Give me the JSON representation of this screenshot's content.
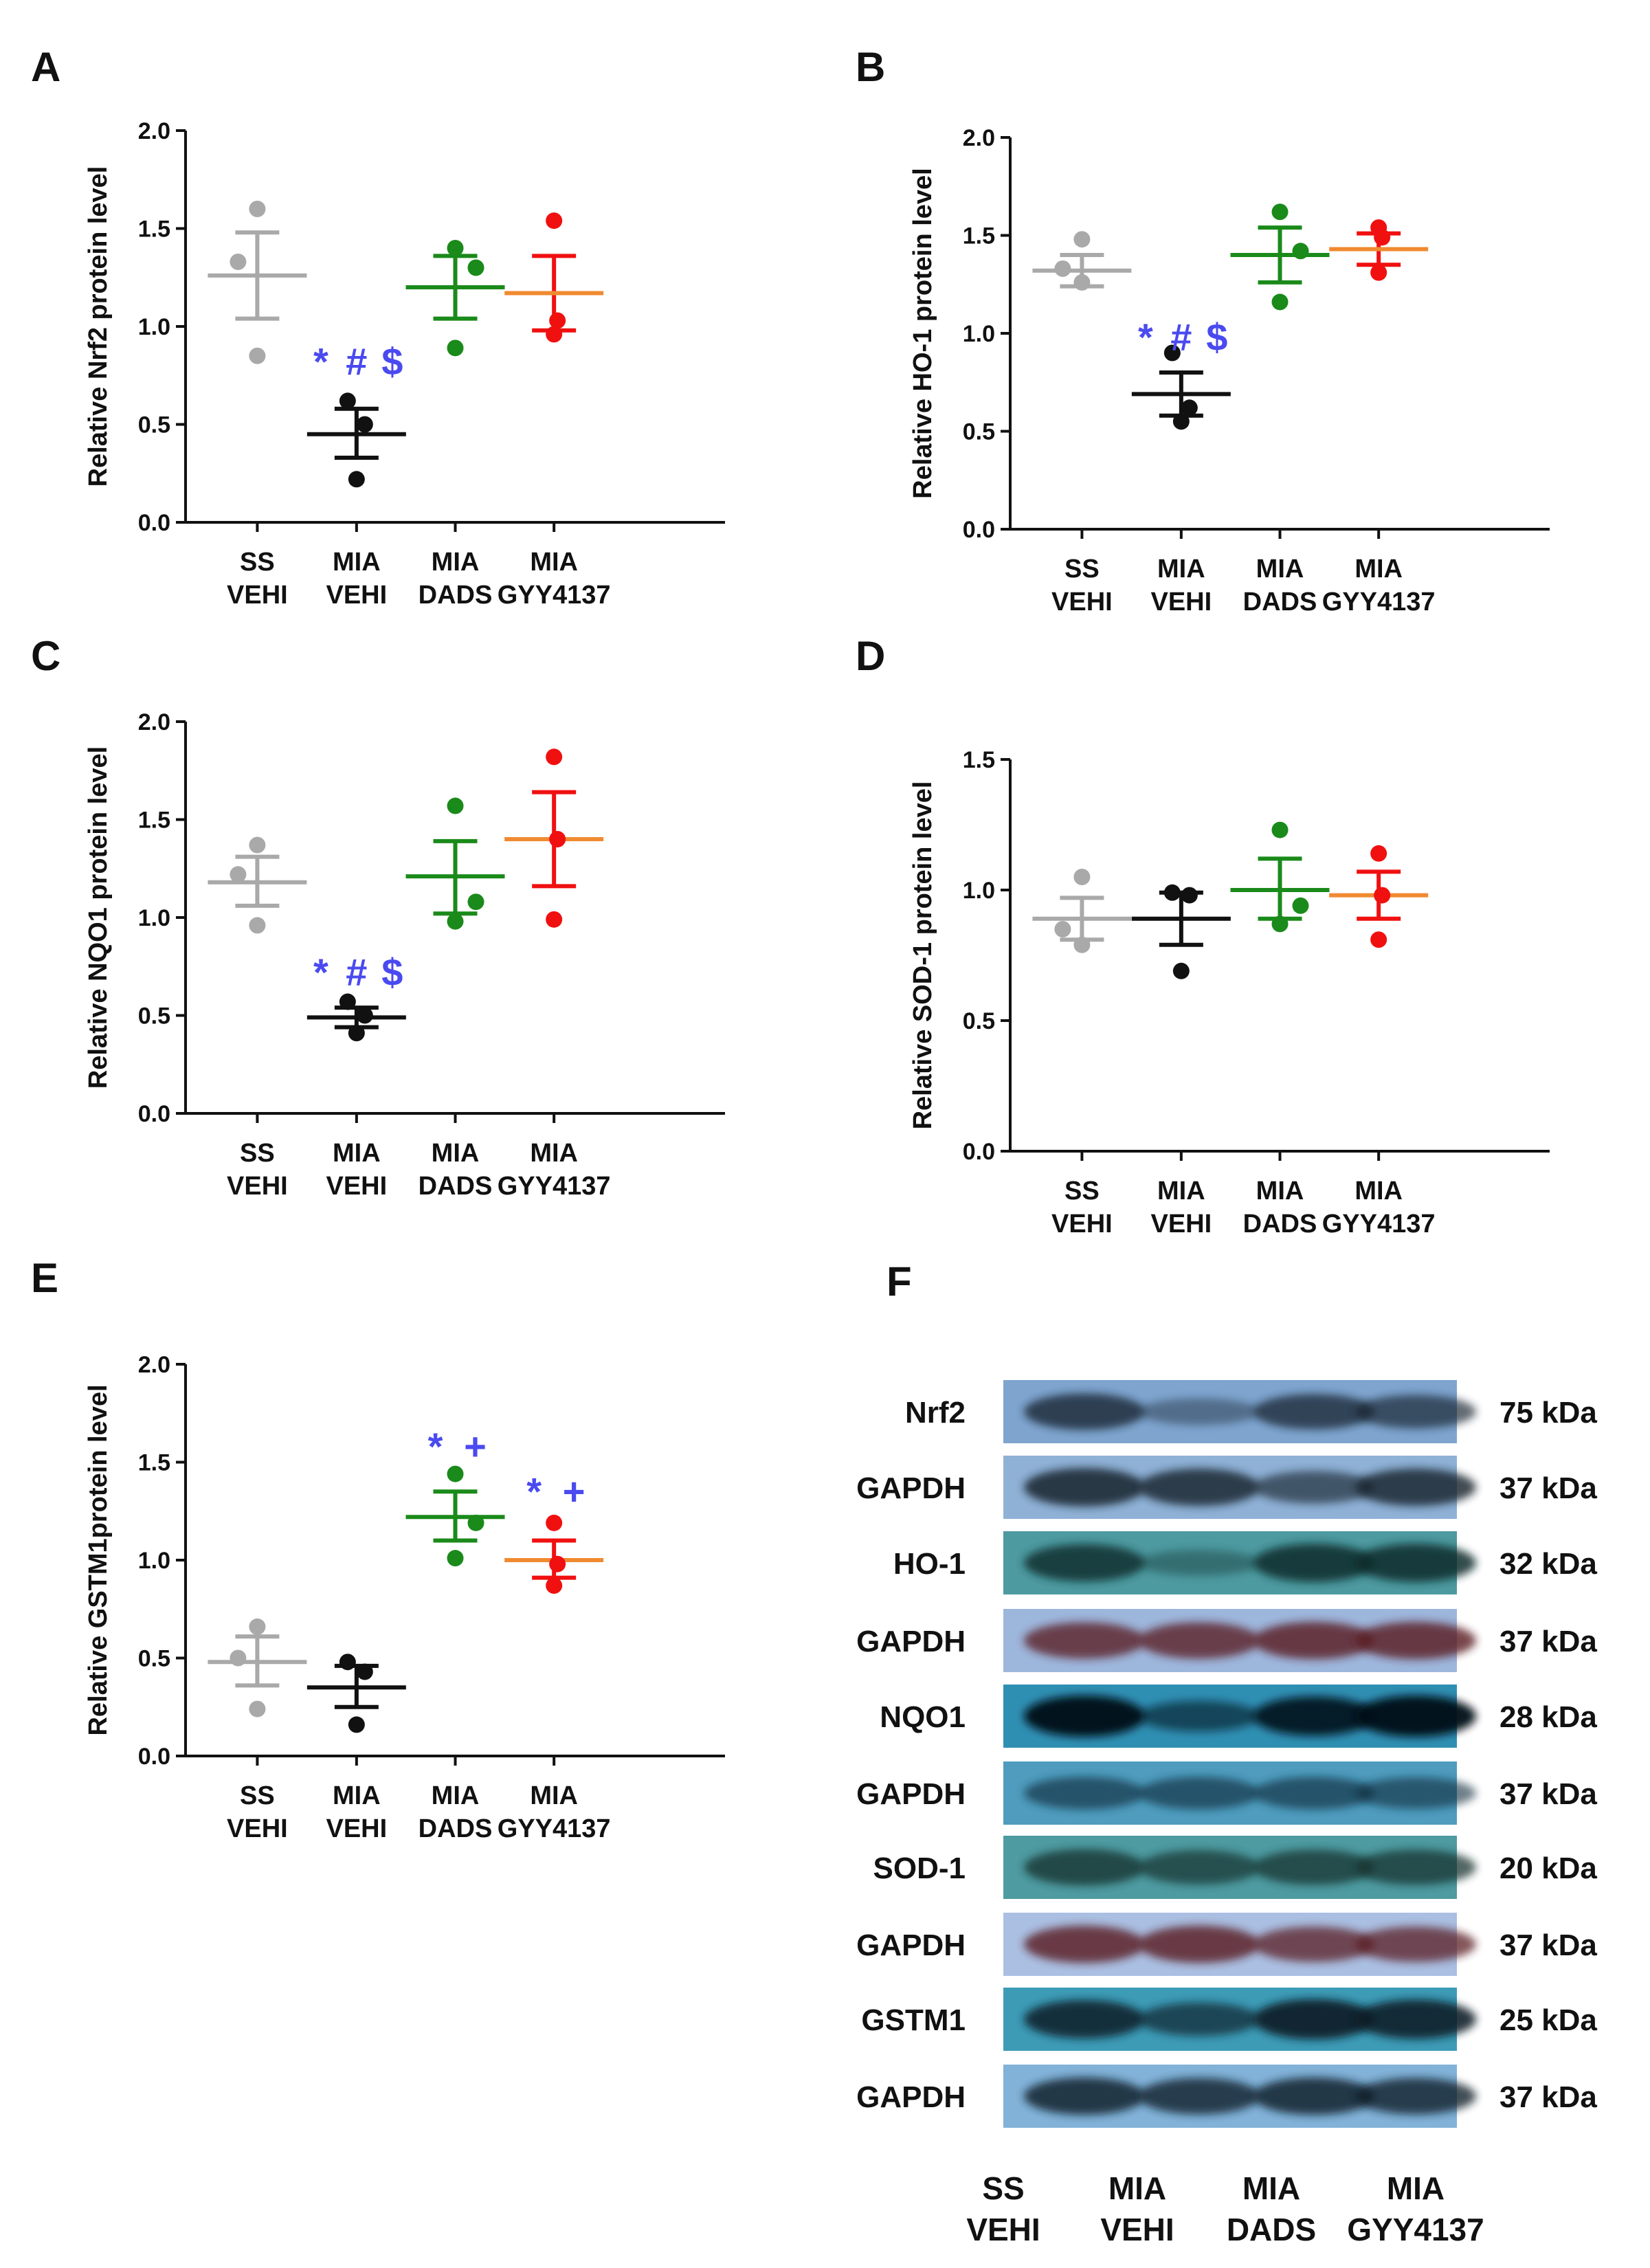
{
  "figure": {
    "groups": [
      "SS\nVEHI",
      "MIA\nVEHI",
      "MIA\nDADS",
      "MIA\nGYY4137"
    ],
    "group_colors": [
      "#a9a9a9",
      "#111111",
      "#1a8a1a",
      "#f01010"
    ],
    "mean_colors": [
      "#a9a9a9",
      "#111111",
      "#1a8a1a",
      "#f08a30"
    ],
    "annotation_color": "#4a4af0"
  },
  "chart_data": [
    {
      "panel": "A",
      "type": "scatter",
      "ylabel": "Relative Nrf2 protein level",
      "ylim": [
        0,
        2
      ],
      "yticks": [
        "0.0",
        "0.5",
        "1.0",
        "1.5",
        "2.0"
      ],
      "series": [
        {
          "name": "SS VEHI",
          "points": [
            1.6,
            1.33,
            0.85
          ],
          "mean": 1.26,
          "sem_low": 1.04,
          "sem_high": 1.48
        },
        {
          "name": "MIA VEHI",
          "points": [
            0.62,
            0.5,
            0.22
          ],
          "mean": 0.45,
          "sem_low": 0.33,
          "sem_high": 0.58
        },
        {
          "name": "MIA DADS",
          "points": [
            1.4,
            1.3,
            0.89
          ],
          "mean": 1.2,
          "sem_low": 1.04,
          "sem_high": 1.36
        },
        {
          "name": "MIA GYY4137",
          "points": [
            1.54,
            1.03,
            0.96
          ],
          "mean": 1.17,
          "sem_low": 0.98,
          "sem_high": 1.36
        }
      ],
      "annotations": [
        {
          "group": "MIA VEHI",
          "text": "*#$",
          "y": 0.83
        }
      ]
    },
    {
      "panel": "B",
      "type": "scatter",
      "ylabel": "Relative HO-1 protein level",
      "ylim": [
        0,
        2
      ],
      "yticks": [
        "0.0",
        "0.5",
        "1.0",
        "1.5",
        "2.0"
      ],
      "series": [
        {
          "name": "SS VEHI",
          "points": [
            1.48,
            1.33,
            1.26
          ],
          "mean": 1.32,
          "sem_low": 1.24,
          "sem_high": 1.4
        },
        {
          "name": "MIA VEHI",
          "points": [
            0.9,
            0.62,
            0.55
          ],
          "mean": 0.69,
          "sem_low": 0.58,
          "sem_high": 0.8
        },
        {
          "name": "MIA DADS",
          "points": [
            1.62,
            1.42,
            1.16
          ],
          "mean": 1.4,
          "sem_low": 1.26,
          "sem_high": 1.54
        },
        {
          "name": "MIA GYY4137",
          "points": [
            1.54,
            1.49,
            1.31
          ],
          "mean": 1.43,
          "sem_low": 1.35,
          "sem_high": 1.51
        }
      ],
      "annotations": [
        {
          "group": "MIA VEHI",
          "text": "*#$",
          "y": 0.99
        }
      ]
    },
    {
      "panel": "C",
      "type": "scatter",
      "ylabel": "Relative NQO1 protein level",
      "ylim": [
        0,
        2
      ],
      "yticks": [
        "0.0",
        "0.5",
        "1.0",
        "1.5",
        "2.0"
      ],
      "series": [
        {
          "name": "SS VEHI",
          "points": [
            1.37,
            1.22,
            0.96
          ],
          "mean": 1.18,
          "sem_low": 1.06,
          "sem_high": 1.31
        },
        {
          "name": "MIA VEHI",
          "points": [
            0.57,
            0.5,
            0.41
          ],
          "mean": 0.49,
          "sem_low": 0.44,
          "sem_high": 0.54
        },
        {
          "name": "MIA DADS",
          "points": [
            1.57,
            1.08,
            0.98
          ],
          "mean": 1.21,
          "sem_low": 1.02,
          "sem_high": 1.39
        },
        {
          "name": "MIA GYY4137",
          "points": [
            1.82,
            1.4,
            0.99
          ],
          "mean": 1.4,
          "sem_low": 1.16,
          "sem_high": 1.64
        }
      ],
      "annotations": [
        {
          "group": "MIA VEHI",
          "text": "*#$",
          "y": 0.73
        }
      ]
    },
    {
      "panel": "D",
      "type": "scatter",
      "ylabel": "Relative SOD-1 protein level",
      "ylim": [
        0,
        1.5
      ],
      "yticks": [
        "0.0",
        "0.5",
        "1.0",
        "1.5"
      ],
      "series": [
        {
          "name": "SS VEHI",
          "points": [
            1.05,
            0.85,
            0.79
          ],
          "mean": 0.89,
          "sem_low": 0.81,
          "sem_high": 0.97
        },
        {
          "name": "MIA VEHI",
          "points": [
            0.99,
            0.98,
            0.69
          ],
          "mean": 0.89,
          "sem_low": 0.79,
          "sem_high": 0.99
        },
        {
          "name": "MIA DADS",
          "points": [
            1.23,
            0.94,
            0.87
          ],
          "mean": 1.0,
          "sem_low": 0.89,
          "sem_high": 1.12
        },
        {
          "name": "MIA GYY4137",
          "points": [
            1.14,
            0.98,
            0.81
          ],
          "mean": 0.98,
          "sem_low": 0.89,
          "sem_high": 1.07
        }
      ],
      "annotations": []
    },
    {
      "panel": "E",
      "type": "scatter",
      "ylabel": "Relative GSTM1protein level",
      "ylim": [
        0,
        2
      ],
      "yticks": [
        "0.0",
        "0.5",
        "1.0",
        "1.5",
        "2.0"
      ],
      "series": [
        {
          "name": "SS VEHI",
          "points": [
            0.66,
            0.5,
            0.24
          ],
          "mean": 0.48,
          "sem_low": 0.36,
          "sem_high": 0.61
        },
        {
          "name": "MIA VEHI",
          "points": [
            0.48,
            0.43,
            0.16
          ],
          "mean": 0.35,
          "sem_low": 0.25,
          "sem_high": 0.46
        },
        {
          "name": "MIA DADS",
          "points": [
            1.44,
            1.19,
            1.01
          ],
          "mean": 1.22,
          "sem_low": 1.1,
          "sem_high": 1.35
        },
        {
          "name": "MIA GYY4137",
          "points": [
            1.19,
            0.98,
            0.87
          ],
          "mean": 1.0,
          "sem_low": 0.91,
          "sem_high": 1.1
        }
      ],
      "annotations": [
        {
          "group": "MIA DADS",
          "text": "*+",
          "y": 1.59
        },
        {
          "group": "MIA GYY4137",
          "text": "*+",
          "y": 1.36
        }
      ]
    }
  ],
  "blot": {
    "panel": "F",
    "lane_labels": [
      "SS\nVEHI",
      "MIA\nVEHI",
      "MIA\nDADS",
      "MIA\nGYY4137"
    ],
    "rows": [
      {
        "protein": "Nrf2",
        "kda": "75 kDa",
        "intensity": [
          0.75,
          0.25,
          0.7,
          0.6
        ],
        "bg": "#7fa5cf",
        "band": "#13202e"
      },
      {
        "protein": "GAPDH",
        "kda": "37 kDa",
        "intensity": [
          0.85,
          0.8,
          0.55,
          0.8
        ],
        "bg": "#8fb1d6",
        "band": "#14202c"
      },
      {
        "protein": "HO-1",
        "kda": "32 kDa",
        "intensity": [
          0.8,
          0.2,
          0.85,
          0.85
        ],
        "bg": "#4d9aa0",
        "band": "#0e2a2a"
      },
      {
        "protein": "GAPDH",
        "kda": "37 kDa",
        "intensity": [
          0.75,
          0.75,
          0.8,
          0.8
        ],
        "bg": "#9db6dc",
        "band": "#5a1a24"
      },
      {
        "protein": "NQO1",
        "kda": "28 kDa",
        "intensity": [
          1.0,
          0.45,
          0.9,
          1.0
        ],
        "bg": "#2f8fb3",
        "band": "#060d14"
      },
      {
        "protein": "GAPDH",
        "kda": "37 kDa",
        "intensity": [
          0.55,
          0.55,
          0.55,
          0.5
        ],
        "bg": "#4f9cbe",
        "band": "#0f2a3a"
      },
      {
        "protein": "SOD-1",
        "kda": "20 kDa",
        "intensity": [
          0.75,
          0.65,
          0.7,
          0.7
        ],
        "bg": "#4e9ba1",
        "band": "#12302e"
      },
      {
        "protein": "GAPDH",
        "kda": "37 kDa",
        "intensity": [
          0.8,
          0.8,
          0.7,
          0.7
        ],
        "bg": "#aabfe2",
        "band": "#5a1a22"
      },
      {
        "protein": "GSTM1",
        "kda": "25 kDa",
        "intensity": [
          0.85,
          0.6,
          0.95,
          0.9
        ],
        "bg": "#3d9bb6",
        "band": "#0b1c26"
      },
      {
        "protein": "GAPDH",
        "kda": "37 kDa",
        "intensity": [
          0.8,
          0.75,
          0.8,
          0.75
        ],
        "bg": "#82b2d8",
        "band": "#101c28"
      }
    ]
  }
}
